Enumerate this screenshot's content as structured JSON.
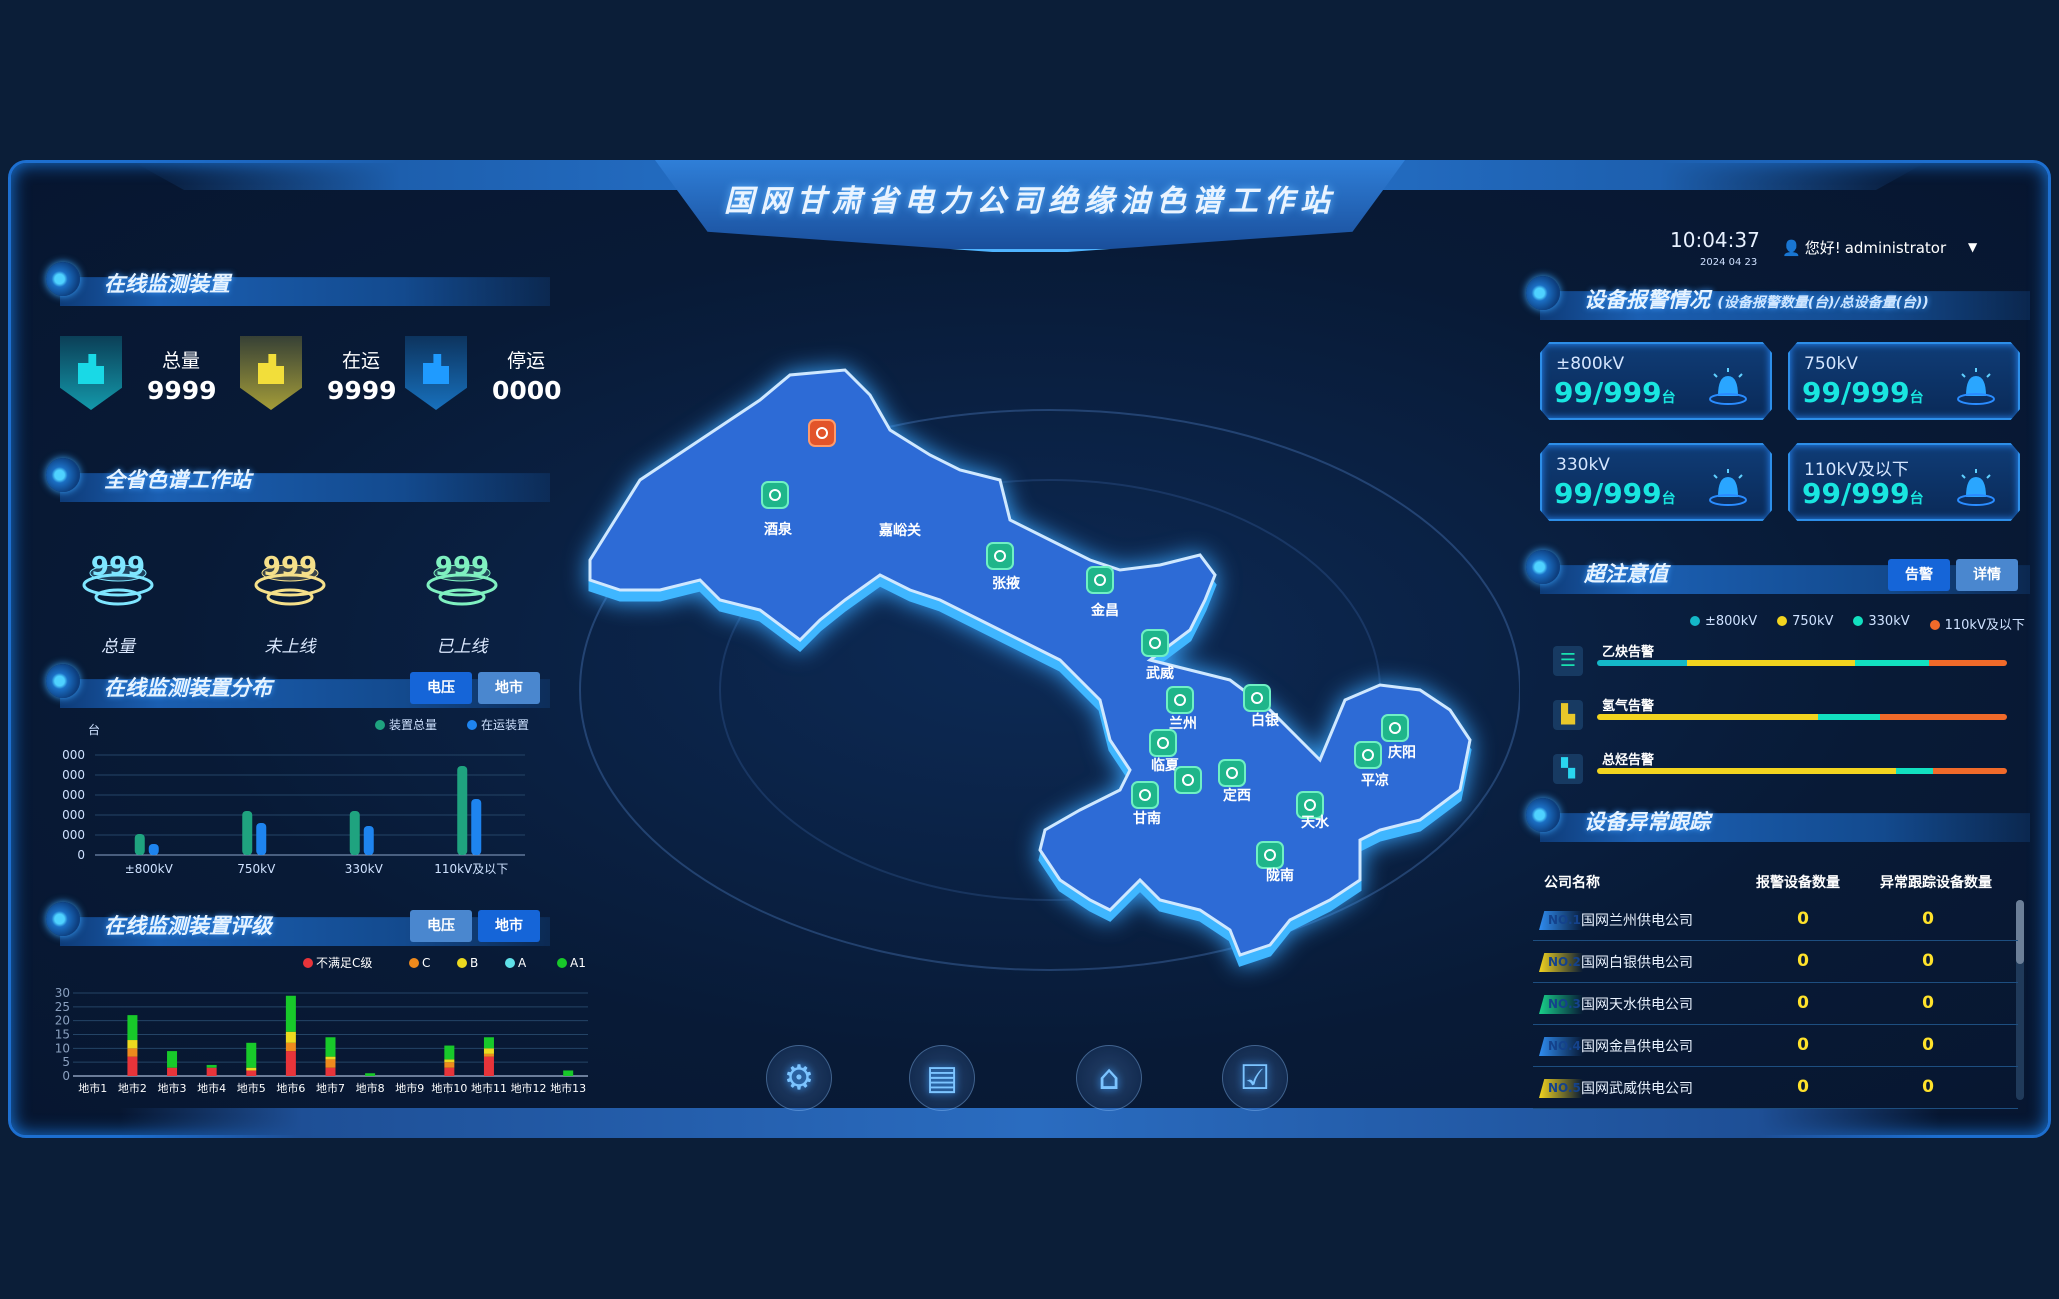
{
  "header": {
    "title": "国网甘肃省电力公司绝缘油色谱工作站",
    "time": "10:04:37",
    "date": "2024 04 23",
    "greeting": "您好!",
    "user": "administrator"
  },
  "colors": {
    "accent": "#1565d8",
    "cyan": "#19e6e0",
    "yellow": "#ffe22b",
    "bg": "#081a36"
  },
  "devices": {
    "title": "在线监测装置",
    "items": [
      {
        "label": "总量",
        "value": "9999",
        "icon": "building-icon",
        "color": "#19d9e6"
      },
      {
        "label": "在运",
        "value": "9999",
        "icon": "building-icon",
        "color": "#f2de3a"
      },
      {
        "label": "停运",
        "value": "0000",
        "icon": "building-icon",
        "color": "#1f9bff"
      }
    ]
  },
  "stations": {
    "title": "全省色谱工作站",
    "items": [
      {
        "label": "总量",
        "value": "999",
        "color": "#7fe6ff"
      },
      {
        "label": "未上线",
        "value": "999",
        "color": "#f5e08a"
      },
      {
        "label": "已上线",
        "value": "999",
        "color": "#7ff0c0"
      }
    ]
  },
  "distribution": {
    "title": "在线监测装置分布",
    "buttons": [
      "电压",
      "地市"
    ],
    "active": 0
  },
  "rating": {
    "title": "在线监测装置评级",
    "buttons": [
      "电压",
      "地市"
    ],
    "active": 1
  },
  "chart_data": [
    {
      "type": "bar",
      "ylabel": "台",
      "categories": [
        "±800kV",
        "750kV",
        "330kV",
        "110kV及以下"
      ],
      "ytick_labels": [
        "0",
        "000",
        "000",
        "000",
        "000",
        "000"
      ],
      "ylim": [
        0,
        5
      ],
      "grid": true,
      "legend": "top-right",
      "series": [
        {
          "name": "装置总量",
          "color": "#1fa37f",
          "values": [
            1.05,
            2.2,
            2.2,
            4.45
          ]
        },
        {
          "name": "在运装置",
          "color": "#1e84ef",
          "values": [
            0.55,
            1.6,
            1.45,
            2.8
          ]
        }
      ]
    },
    {
      "type": "bar",
      "stacked": true,
      "categories": [
        "地市1",
        "地市2",
        "地市3",
        "地市4",
        "地市5",
        "地市6",
        "地市7",
        "地市8",
        "地市9",
        "地市10",
        "地市11",
        "地市12",
        "地市13"
      ],
      "yticks": [
        0,
        5,
        10,
        15,
        20,
        25,
        30
      ],
      "ylim": [
        0,
        30
      ],
      "grid": true,
      "legend": "top-right",
      "series": [
        {
          "name": "不满足C级",
          "color": "#e8343a",
          "values": [
            0,
            7,
            3,
            3,
            2,
            9,
            3,
            0,
            0,
            3,
            7,
            0,
            0
          ]
        },
        {
          "name": "C",
          "color": "#ee8a1d",
          "values": [
            0,
            3,
            0,
            0,
            0,
            3,
            3,
            0,
            0,
            2,
            1,
            0,
            0
          ]
        },
        {
          "name": "B",
          "color": "#ecd91f",
          "values": [
            0,
            3,
            0,
            0,
            1,
            4,
            1,
            0,
            0,
            1,
            2,
            0,
            0
          ]
        },
        {
          "name": "A",
          "color": "#5fe0e8",
          "values": [
            0,
            0,
            0,
            0,
            0,
            0,
            0,
            0,
            0,
            0,
            0,
            0,
            0
          ]
        },
        {
          "name": "A1",
          "color": "#18c92a",
          "values": [
            0,
            9,
            6,
            1,
            9,
            13,
            7,
            1,
            0,
            5,
            4,
            0,
            2
          ]
        }
      ]
    }
  ],
  "map": {
    "cities": [
      {
        "name": "酒泉",
        "alert": false
      },
      {
        "name": "",
        "alert": true
      },
      {
        "name": "嘉峪关",
        "alert": false
      },
      {
        "name": "张掖",
        "alert": false
      },
      {
        "name": "金昌",
        "alert": false
      },
      {
        "name": "武威",
        "alert": false
      },
      {
        "name": "兰州",
        "alert": false
      },
      {
        "name": "白银",
        "alert": false
      },
      {
        "name": "临夏",
        "alert": false
      },
      {
        "name": "",
        "alert": false
      },
      {
        "name": "定西",
        "alert": false
      },
      {
        "name": "甘南",
        "alert": false
      },
      {
        "name": "天水",
        "alert": false
      },
      {
        "name": "陇南",
        "alert": false
      },
      {
        "name": "庆阳",
        "alert": false
      },
      {
        "name": "平凉",
        "alert": false
      }
    ]
  },
  "nav": [
    {
      "name": "settings",
      "icon": "gear-icon"
    },
    {
      "name": "calendar",
      "icon": "calendar-icon"
    },
    {
      "name": "home",
      "icon": "home-icon"
    },
    {
      "name": "tasks",
      "icon": "clipboard-check-icon"
    }
  ],
  "alarms": {
    "title": "设备报警情况",
    "subtitle": "(设备报警数量(台)/总设备量(台))",
    "unit": "台",
    "cards": [
      {
        "label": "±800kV",
        "value": "99/999"
      },
      {
        "label": "750kV",
        "value": "99/999"
      },
      {
        "label": "330kV",
        "value": "99/999"
      },
      {
        "label": "110kV及以下",
        "value": "99/999"
      }
    ]
  },
  "threshold": {
    "title": "超注意值",
    "buttons": [
      "告警",
      "详情"
    ],
    "active": 0,
    "legend": [
      {
        "name": "±800kV",
        "color": "#14b8c8"
      },
      {
        "name": "750kV",
        "color": "#f2d41f"
      },
      {
        "name": "330kV",
        "color": "#12e0c0"
      },
      {
        "name": "110kV及以下",
        "color": "#f06a2a"
      }
    ],
    "rows": [
      {
        "label": "乙炔告警",
        "icon": "list-icon",
        "segments_pct": [
          22,
          41,
          18,
          19
        ]
      },
      {
        "label": "氢气告警",
        "icon": "chart-icon",
        "segments_pct": [
          0,
          54,
          15,
          31
        ]
      },
      {
        "label": "总烃告警",
        "icon": "book-icon",
        "segments_pct": [
          0,
          73,
          9,
          18
        ]
      }
    ]
  },
  "tracking": {
    "title": "设备异常跟踪",
    "columns": [
      "公司名称",
      "报警设备数量",
      "异常跟踪设备数量"
    ],
    "rows": [
      {
        "no": "NO.1",
        "name": "国网兰州供电公司",
        "alarm": "0",
        "track": "0",
        "color": "#2f8cf0"
      },
      {
        "no": "NO.2",
        "name": "国网白银供电公司",
        "alarm": "0",
        "track": "0",
        "color": "#f2d41f"
      },
      {
        "no": "NO.3",
        "name": "国网天水供电公司",
        "alarm": "0",
        "track": "0",
        "color": "#19d08a"
      },
      {
        "no": "NO.4",
        "name": "国网金昌供电公司",
        "alarm": "0",
        "track": "0",
        "color": "#2f8cf0"
      },
      {
        "no": "NO.5",
        "name": "国网武威供电公司",
        "alarm": "0",
        "track": "0",
        "color": "#f2d41f"
      }
    ]
  }
}
